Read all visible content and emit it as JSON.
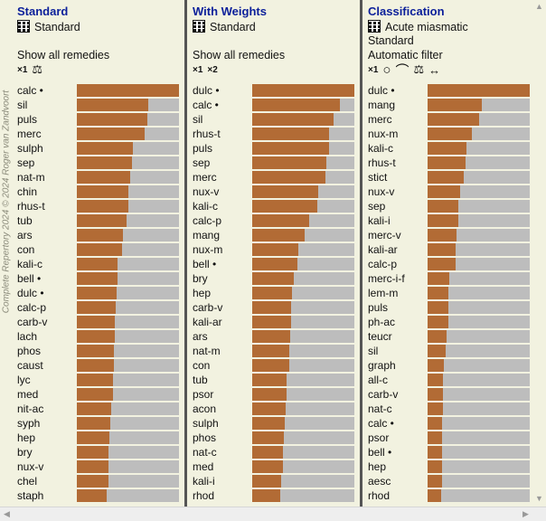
{
  "watermark": "Complete Repertory 2024 © 2024 Roger van Zandvoort",
  "panels": [
    {
      "title": "Standard",
      "method": "Standard",
      "option": "Show all remedies",
      "toolbar": [
        "×1",
        "⚖"
      ],
      "rows": [
        {
          "name": "calc •",
          "value": 100
        },
        {
          "name": "sil",
          "value": 70
        },
        {
          "name": "puls",
          "value": 69
        },
        {
          "name": "merc",
          "value": 66
        },
        {
          "name": "sulph",
          "value": 55
        },
        {
          "name": "sep",
          "value": 54
        },
        {
          "name": "nat-m",
          "value": 52
        },
        {
          "name": "chin",
          "value": 50
        },
        {
          "name": "rhus-t",
          "value": 50
        },
        {
          "name": "tub",
          "value": 49
        },
        {
          "name": "ars",
          "value": 45
        },
        {
          "name": "con",
          "value": 44
        },
        {
          "name": "kali-c",
          "value": 40
        },
        {
          "name": "bell •",
          "value": 40
        },
        {
          "name": "dulc •",
          "value": 39
        },
        {
          "name": "calc-p",
          "value": 38
        },
        {
          "name": "carb-v",
          "value": 37
        },
        {
          "name": "lach",
          "value": 37
        },
        {
          "name": "phos",
          "value": 36
        },
        {
          "name": "caust",
          "value": 36
        },
        {
          "name": "lyc",
          "value": 35
        },
        {
          "name": "med",
          "value": 35
        },
        {
          "name": "nit-ac",
          "value": 34
        },
        {
          "name": "syph",
          "value": 33
        },
        {
          "name": "hep",
          "value": 32
        },
        {
          "name": "bry",
          "value": 31
        },
        {
          "name": "nux-v",
          "value": 31
        },
        {
          "name": "chel",
          "value": 31
        },
        {
          "name": "staph",
          "value": 29
        }
      ]
    },
    {
      "title": "With Weights",
      "method": "Standard",
      "option": "Show all remedies",
      "toolbar": [
        "×1",
        "×2"
      ],
      "rows": [
        {
          "name": "dulc •",
          "value": 100
        },
        {
          "name": "calc •",
          "value": 86
        },
        {
          "name": "sil",
          "value": 80
        },
        {
          "name": "rhus-t",
          "value": 75
        },
        {
          "name": "puls",
          "value": 75
        },
        {
          "name": "sep",
          "value": 73
        },
        {
          "name": "merc",
          "value": 72
        },
        {
          "name": "nux-v",
          "value": 65
        },
        {
          "name": "kali-c",
          "value": 64
        },
        {
          "name": "calc-p",
          "value": 56
        },
        {
          "name": "mang",
          "value": 51
        },
        {
          "name": "nux-m",
          "value": 45
        },
        {
          "name": "bell •",
          "value": 44
        },
        {
          "name": "bry",
          "value": 41
        },
        {
          "name": "hep",
          "value": 39
        },
        {
          "name": "carb-v",
          "value": 38
        },
        {
          "name": "kali-ar",
          "value": 38
        },
        {
          "name": "ars",
          "value": 37
        },
        {
          "name": "nat-m",
          "value": 36
        },
        {
          "name": "con",
          "value": 36
        },
        {
          "name": "tub",
          "value": 34
        },
        {
          "name": "psor",
          "value": 34
        },
        {
          "name": "acon",
          "value": 33
        },
        {
          "name": "sulph",
          "value": 32
        },
        {
          "name": "phos",
          "value": 31
        },
        {
          "name": "nat-c",
          "value": 30
        },
        {
          "name": "med",
          "value": 30
        },
        {
          "name": "kali-i",
          "value": 28
        },
        {
          "name": "rhod",
          "value": 27
        }
      ]
    },
    {
      "title": "Classification",
      "method": "Acute miasmatic",
      "method2": "Standard",
      "option": "Automatic filter",
      "toolbar": [
        "×1",
        "○",
        "⌒",
        "⚖",
        "↔"
      ],
      "rows": [
        {
          "name": "dulc •",
          "value": 100
        },
        {
          "name": "mang",
          "value": 53
        },
        {
          "name": "merc",
          "value": 50
        },
        {
          "name": "nux-m",
          "value": 43
        },
        {
          "name": "kali-c",
          "value": 38
        },
        {
          "name": "rhus-t",
          "value": 37
        },
        {
          "name": "stict",
          "value": 35
        },
        {
          "name": "nux-v",
          "value": 32
        },
        {
          "name": "sep",
          "value": 30
        },
        {
          "name": "kali-i",
          "value": 30
        },
        {
          "name": "merc-v",
          "value": 28
        },
        {
          "name": "kali-ar",
          "value": 27
        },
        {
          "name": "calc-p",
          "value": 27
        },
        {
          "name": "merc-i-f",
          "value": 21
        },
        {
          "name": "lem-m",
          "value": 20
        },
        {
          "name": "puls",
          "value": 20
        },
        {
          "name": "ph-ac",
          "value": 20
        },
        {
          "name": "teucr",
          "value": 19
        },
        {
          "name": "sil",
          "value": 18
        },
        {
          "name": "graph",
          "value": 16
        },
        {
          "name": "all-c",
          "value": 15
        },
        {
          "name": "carb-v",
          "value": 15
        },
        {
          "name": "nat-c",
          "value": 15
        },
        {
          "name": "calc •",
          "value": 14
        },
        {
          "name": "psor",
          "value": 14
        },
        {
          "name": "bell •",
          "value": 14
        },
        {
          "name": "hep",
          "value": 14
        },
        {
          "name": "aesc",
          "value": 14
        },
        {
          "name": "rhod",
          "value": 13
        }
      ]
    }
  ],
  "colors": {
    "bar_fill": "#b26b35",
    "bar_track": "#bdbdbd",
    "title": "#0b1f9a",
    "background": "#f2f2e0"
  }
}
